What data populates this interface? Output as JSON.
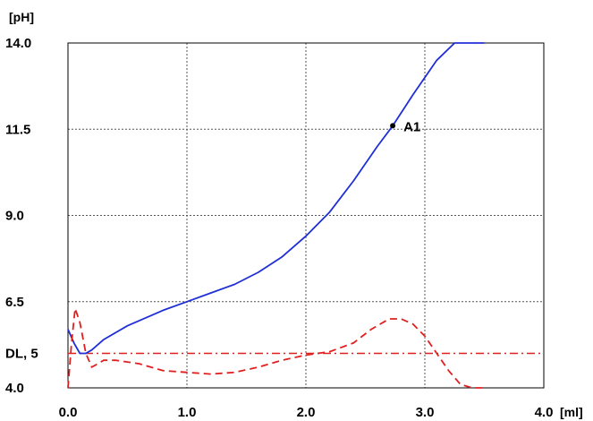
{
  "chart_data": {
    "type": "line",
    "ylabel": "[pH]",
    "xunit": "[ml]",
    "xlim": [
      0,
      4
    ],
    "ylim": [
      4,
      14
    ],
    "grid": true,
    "x_ticks": [
      0,
      1,
      2,
      3,
      4
    ],
    "x_tick_labels": [
      "0.0",
      "1.0",
      "2.0",
      "3.0",
      "4.0"
    ],
    "y_ticks": [
      4,
      6.5,
      9,
      11.5,
      14
    ],
    "y_tick_labels": [
      "4.0",
      "6.5",
      "9.0",
      "11.5",
      "14.0"
    ],
    "series": [
      {
        "color": "#1f2fd6",
        "style": "solid",
        "x": [
          0.0,
          0.05,
          0.1,
          0.15,
          0.2,
          0.3,
          0.4,
          0.5,
          0.6,
          0.8,
          1.0,
          1.2,
          1.4,
          1.6,
          1.8,
          2.0,
          2.2,
          2.4,
          2.6,
          2.73,
          2.9,
          3.1,
          3.25,
          3.35,
          3.5
        ],
        "y": [
          5.7,
          5.3,
          5.0,
          5.0,
          5.1,
          5.4,
          5.6,
          5.8,
          5.95,
          6.25,
          6.5,
          6.75,
          7.0,
          7.35,
          7.8,
          8.4,
          9.1,
          10.0,
          11.0,
          11.6,
          12.5,
          13.5,
          14.0,
          14.0,
          14.0
        ]
      },
      {
        "color": "#e02020",
        "style": "dashed",
        "x": [
          0.0,
          0.03,
          0.06,
          0.1,
          0.15,
          0.2,
          0.25,
          0.3,
          0.4,
          0.6,
          0.8,
          1.0,
          1.2,
          1.4,
          1.6,
          1.8,
          2.0,
          2.2,
          2.4,
          2.55,
          2.7,
          2.8,
          2.9,
          3.0,
          3.1,
          3.2,
          3.3,
          3.4,
          3.5
        ],
        "y": [
          4.0,
          5.3,
          6.3,
          5.9,
          5.0,
          4.6,
          4.7,
          4.8,
          4.8,
          4.7,
          4.5,
          4.45,
          4.4,
          4.45,
          4.6,
          4.8,
          4.95,
          5.05,
          5.3,
          5.7,
          6.0,
          6.0,
          5.85,
          5.5,
          5.0,
          4.5,
          4.1,
          4.0,
          4.0
        ]
      }
    ],
    "reference_line": {
      "label": "DL, 5",
      "y": 5,
      "color": "#e02020",
      "style": "dash-dot"
    },
    "points": [
      {
        "label": "A1",
        "x": 2.73,
        "y": 11.6
      }
    ]
  }
}
